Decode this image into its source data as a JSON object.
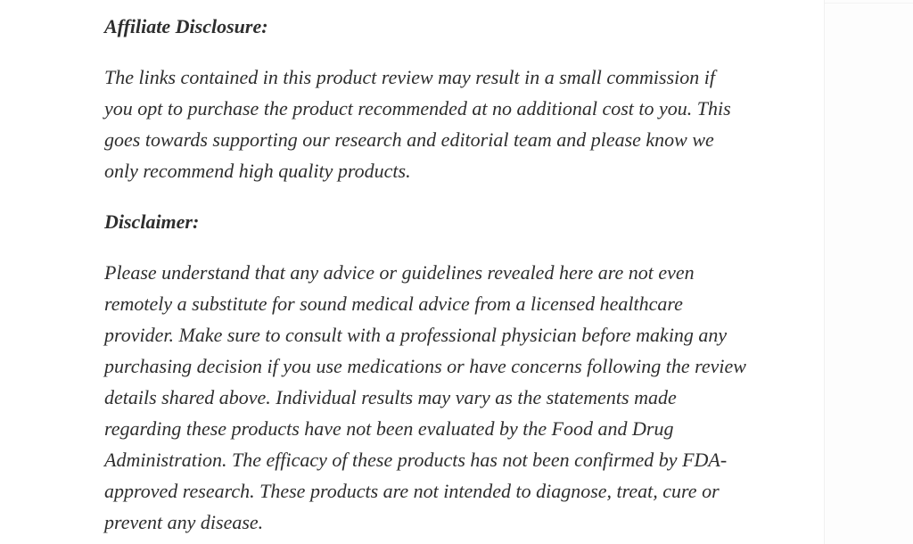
{
  "page": {
    "background_color": "#fdfdfd",
    "content_background": "#ffffff",
    "text_color": "#2e2e2e",
    "edge_line_color": "#f0f0f0"
  },
  "sections": [
    {
      "heading": "Affiliate Disclosure:",
      "text": "The links contained in this product review may result in a small commission if you opt to purchase the product recommended at no additional cost to you. This goes towards supporting our research and editorial team and please know we only recommend high quality products.",
      "lines": [
        "The links contained in this product review may result in a small commission if",
        "you opt to purchase the product recommended at no additional cost to you. This",
        "goes towards supporting our research and editorial team and please know we",
        "only recommend high quality products."
      ]
    },
    {
      "heading": "Disclaimer:",
      "text": "Please understand that any advice or guidelines revealed here are not even remotely a substitute for sound medical advice from a licensed healthcare provider. Make sure to consult with a professional physician before making any purchasing decision if you use medications or have concerns following the review details shared above. Individual results may vary as the statements made regarding these products have not been evaluated by the Food and Drug Administration. The efficacy of these products has not been confirmed by FDA-approved research. These products are not intended to diagnose, treat, cure or prevent any disease.",
      "lines": [
        "Please understand that any advice or guidelines revealed here are not even",
        "remotely a substitute for sound medical advice from a licensed healthcare",
        "provider. Make sure to consult with a professional physician before making any",
        "purchasing decision if you use medications or have concerns following the review",
        "details shared above. Individual results may vary as the statements made",
        "regarding these products have not been evaluated by the Food and Drug",
        "Administration. The efficacy of these products has not been confirmed by FDA-",
        "approved research. These products are not intended to diagnose, treat, cure or",
        "prevent any disease."
      ]
    }
  ]
}
